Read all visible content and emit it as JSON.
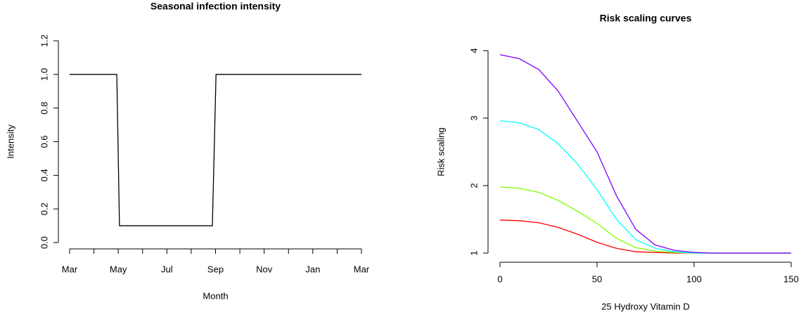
{
  "chart_data": [
    {
      "type": "line",
      "title": "Seasonal infection intensity",
      "x_label": "Month",
      "y_label": "Intensity",
      "x": [
        0,
        1.94,
        2.05,
        5.87,
        6.02,
        12
      ],
      "series": [
        {
          "color": "#000000",
          "values": [
            1,
            1,
            0.1,
            0.1,
            1,
            1
          ]
        }
      ],
      "xlim": [
        0,
        12
      ],
      "xticks": [
        0,
        1,
        2,
        3,
        4,
        5,
        6,
        7,
        8,
        9,
        10,
        11,
        12
      ],
      "xticklabels": [
        "Mar",
        null,
        "May",
        null,
        "Jul",
        null,
        "Sep",
        null,
        "Nov",
        null,
        "Jan",
        null,
        "Mar"
      ],
      "ylim": [
        0,
        1.2
      ],
      "yticks": [
        {
          "value": 0,
          "label": "0.0"
        },
        0.2,
        0.4,
        0.6,
        0.8,
        {
          "value": 1,
          "label": "1.0"
        },
        1.2
      ]
    },
    {
      "type": "line",
      "title": "Risk scaling curves",
      "x_label": "25 Hydroxy Vitamin D",
      "y_label": "Risk scaling",
      "x": [
        0,
        10,
        20,
        30,
        40,
        50,
        60,
        70,
        80,
        90,
        100,
        110,
        120,
        130,
        140,
        150
      ],
      "series": [
        {
          "color": "#ff0000",
          "values": [
            1.49,
            1.48,
            1.45,
            1.38,
            1.28,
            1.16,
            1.07,
            1.02,
            1.01,
            1,
            1,
            1,
            1,
            1,
            1,
            1
          ]
        },
        {
          "color": "#80ff00",
          "values": [
            1.98,
            1.96,
            1.9,
            1.78,
            1.62,
            1.44,
            1.22,
            1.08,
            1.03,
            1.01,
            1,
            1,
            1,
            1,
            1,
            1
          ]
        },
        {
          "color": "#00ffff",
          "values": [
            2.96,
            2.93,
            2.83,
            2.62,
            2.32,
            1.94,
            1.5,
            1.2,
            1.07,
            1.02,
            1,
            1,
            1,
            1,
            1,
            1
          ]
        },
        {
          "color": "#8000ff",
          "values": [
            3.94,
            3.88,
            3.72,
            3.4,
            2.95,
            2.5,
            1.85,
            1.35,
            1.12,
            1.04,
            1.01,
            1,
            1,
            1,
            1,
            1
          ]
        }
      ],
      "xlim": [
        0,
        150
      ],
      "xticks": [
        0,
        50,
        100,
        150
      ],
      "ylim": [
        1,
        4
      ],
      "yticks": [
        1,
        2,
        3,
        4
      ]
    }
  ]
}
